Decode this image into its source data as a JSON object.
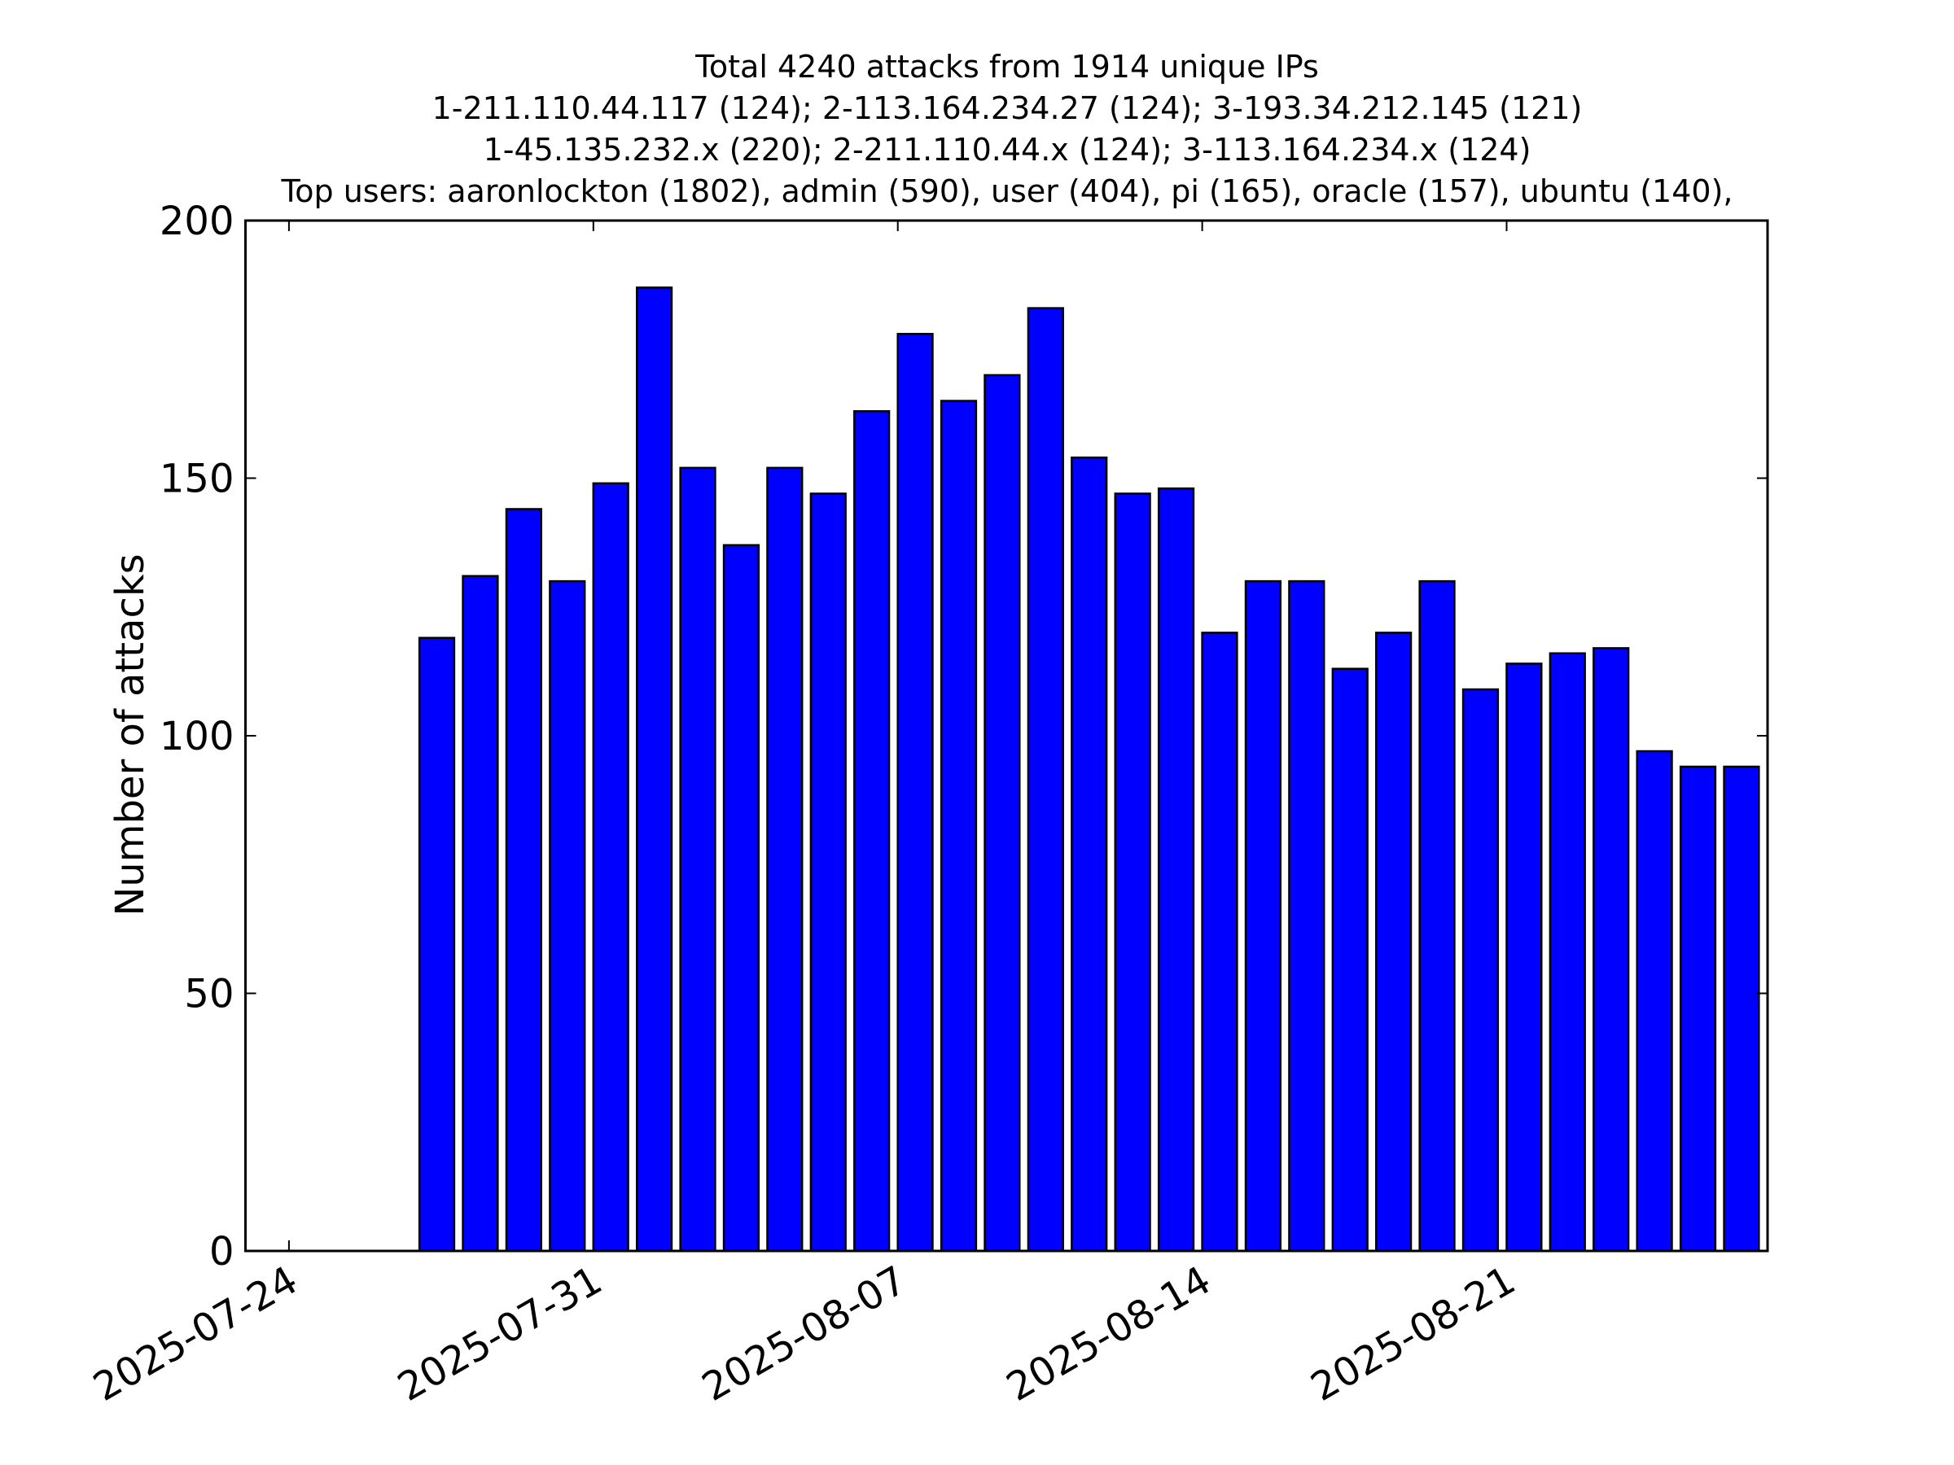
{
  "chart_data": {
    "type": "bar",
    "title": [
      "Total 4240 attacks from 1914 unique IPs",
      "1-211.110.44.117 (124); 2-113.164.234.27 (124); 3-193.34.212.145 (121)",
      "1-45.135.232.x (220); 2-211.110.44.x (124); 3-113.164.234.x (124)",
      "Top users: aaronlockton (1802), admin (590), user (404), pi (165), oracle (157), ubuntu (140),"
    ],
    "ylabel": "Number of attacks",
    "x": [
      "2025-07-27",
      "2025-07-28",
      "2025-07-29",
      "2025-07-30",
      "2025-07-31",
      "2025-08-01",
      "2025-08-02",
      "2025-08-03",
      "2025-08-04",
      "2025-08-05",
      "2025-08-06",
      "2025-08-07",
      "2025-08-08",
      "2025-08-09",
      "2025-08-10",
      "2025-08-11",
      "2025-08-12",
      "2025-08-13",
      "2025-08-14",
      "2025-08-15",
      "2025-08-16",
      "2025-08-17",
      "2025-08-18",
      "2025-08-19",
      "2025-08-20",
      "2025-08-21",
      "2025-08-22",
      "2025-08-23",
      "2025-08-24",
      "2025-08-25",
      "2025-08-26"
    ],
    "values": [
      119,
      131,
      144,
      130,
      149,
      187,
      152,
      137,
      152,
      147,
      163,
      178,
      165,
      170,
      183,
      154,
      147,
      148,
      120,
      130,
      130,
      113,
      120,
      130,
      109,
      114,
      116,
      117,
      97,
      94,
      94
    ],
    "color": "#0000ff",
    "xlim": [
      "2025-07-23",
      "2025-08-27"
    ],
    "xticks": [
      "2025-07-24",
      "2025-07-31",
      "2025-08-07",
      "2025-08-14",
      "2025-08-21"
    ],
    "ylim": [
      0,
      200
    ],
    "yticks": [
      0,
      50,
      100,
      150,
      200
    ]
  }
}
